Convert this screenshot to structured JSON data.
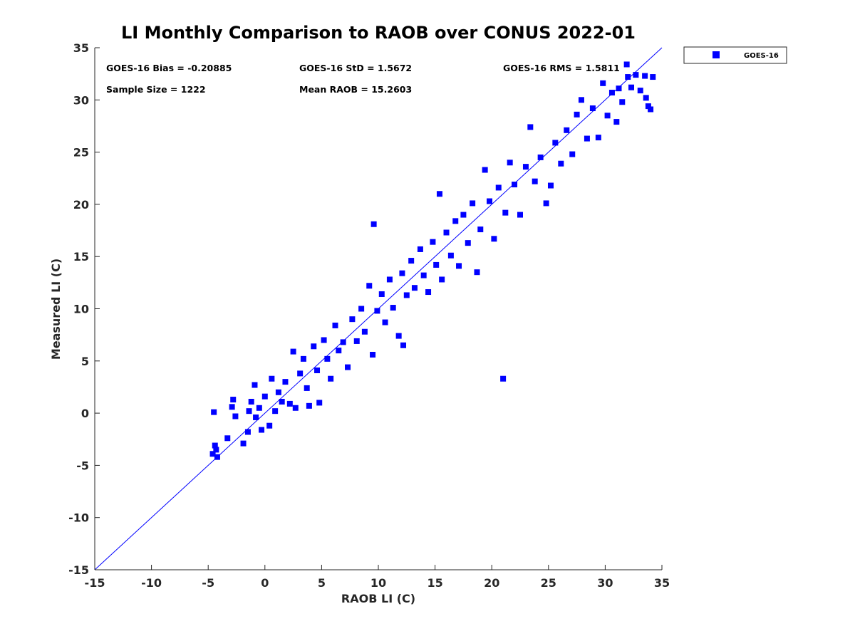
{
  "chart_data": {
    "type": "scatter",
    "title": "LI Monthly Comparison to RAOB over CONUS 2022-01",
    "xlabel": "RAOB LI (C)",
    "ylabel": "Measured LI (C)",
    "xlim": [
      -15,
      35
    ],
    "ylim": [
      -15,
      35
    ],
    "xticks": [
      -15,
      -10,
      -5,
      0,
      5,
      10,
      15,
      20,
      25,
      30,
      35
    ],
    "yticks": [
      -15,
      -10,
      -5,
      0,
      5,
      10,
      15,
      20,
      25,
      30,
      35
    ],
    "xtick_labels": [
      "-15",
      "-10",
      "-5",
      "0",
      "5",
      "10",
      "15",
      "20",
      "25",
      "30",
      "35"
    ],
    "ytick_labels": [
      "-15",
      "-10",
      "-5",
      "0",
      "5",
      "10",
      "15",
      "20",
      "25",
      "30",
      "35"
    ],
    "grid": false,
    "reference_line": {
      "type": "one-to-one",
      "from": [
        -15,
        -15
      ],
      "to": [
        35,
        35
      ],
      "color": "#0000ff"
    },
    "stats": {
      "bias": "GOES-16 Bias = -0.20885",
      "std": "GOES-16 StD = 1.5672",
      "rms": "GOES-16 RMS = 1.5811",
      "sample_size": "Sample Size = 1222",
      "mean_raob": "Mean RAOB = 15.2603"
    },
    "legend": {
      "placement": "outside-top-right",
      "entries": [
        "GOES-16"
      ]
    },
    "series": [
      {
        "name": "GOES-16",
        "color": "#0000ff",
        "marker": "square",
        "points": [
          [
            -4.6,
            -3.9
          ],
          [
            -4.3,
            -3.5
          ],
          [
            -4.4,
            -3.1
          ],
          [
            -4.2,
            -4.2
          ],
          [
            -4.5,
            0.1
          ],
          [
            -3.3,
            -2.4
          ],
          [
            -2.8,
            1.3
          ],
          [
            -2.9,
            0.6
          ],
          [
            -2.6,
            -0.3
          ],
          [
            -1.9,
            -2.9
          ],
          [
            -1.5,
            -1.8
          ],
          [
            -1.4,
            0.2
          ],
          [
            -1.2,
            1.1
          ],
          [
            -0.9,
            2.7
          ],
          [
            -0.8,
            -0.4
          ],
          [
            -0.5,
            0.5
          ],
          [
            -0.3,
            -1.6
          ],
          [
            0.0,
            1.6
          ],
          [
            0.4,
            -1.2
          ],
          [
            0.6,
            3.3
          ],
          [
            0.9,
            0.2
          ],
          [
            1.2,
            2.0
          ],
          [
            1.5,
            1.1
          ],
          [
            1.8,
            3.0
          ],
          [
            2.2,
            0.9
          ],
          [
            2.5,
            5.9
          ],
          [
            2.7,
            0.5
          ],
          [
            3.1,
            3.8
          ],
          [
            3.4,
            5.2
          ],
          [
            3.7,
            2.4
          ],
          [
            3.9,
            0.7
          ],
          [
            4.3,
            6.4
          ],
          [
            4.6,
            4.1
          ],
          [
            4.8,
            1.0
          ],
          [
            5.2,
            7.0
          ],
          [
            5.5,
            5.2
          ],
          [
            5.8,
            3.3
          ],
          [
            6.2,
            8.4
          ],
          [
            6.5,
            6.0
          ],
          [
            6.9,
            6.8
          ],
          [
            7.3,
            4.4
          ],
          [
            7.7,
            9.0
          ],
          [
            8.1,
            6.9
          ],
          [
            8.5,
            10.0
          ],
          [
            8.8,
            7.8
          ],
          [
            9.2,
            12.2
          ],
          [
            9.5,
            5.6
          ],
          [
            9.6,
            18.1
          ],
          [
            9.9,
            9.8
          ],
          [
            10.3,
            11.4
          ],
          [
            10.6,
            8.7
          ],
          [
            11.0,
            12.8
          ],
          [
            11.3,
            10.1
          ],
          [
            11.8,
            7.4
          ],
          [
            12.1,
            13.4
          ],
          [
            12.2,
            6.5
          ],
          [
            12.5,
            11.3
          ],
          [
            12.9,
            14.6
          ],
          [
            13.2,
            12.0
          ],
          [
            13.7,
            15.7
          ],
          [
            14.0,
            13.2
          ],
          [
            14.4,
            11.6
          ],
          [
            14.8,
            16.4
          ],
          [
            15.1,
            14.2
          ],
          [
            15.4,
            21.0
          ],
          [
            15.6,
            12.8
          ],
          [
            16.0,
            17.3
          ],
          [
            16.4,
            15.1
          ],
          [
            16.8,
            18.4
          ],
          [
            17.1,
            14.1
          ],
          [
            17.5,
            19.0
          ],
          [
            17.9,
            16.3
          ],
          [
            18.3,
            20.1
          ],
          [
            18.7,
            13.5
          ],
          [
            19.0,
            17.6
          ],
          [
            19.4,
            23.3
          ],
          [
            19.8,
            20.3
          ],
          [
            20.2,
            16.7
          ],
          [
            20.6,
            21.6
          ],
          [
            21.0,
            3.3
          ],
          [
            21.2,
            19.2
          ],
          [
            21.6,
            24.0
          ],
          [
            22.0,
            21.9
          ],
          [
            22.5,
            19.0
          ],
          [
            23.0,
            23.6
          ],
          [
            23.4,
            27.4
          ],
          [
            23.8,
            22.2
          ],
          [
            24.3,
            24.5
          ],
          [
            24.8,
            20.1
          ],
          [
            25.2,
            21.8
          ],
          [
            25.6,
            25.9
          ],
          [
            26.1,
            23.9
          ],
          [
            26.6,
            27.1
          ],
          [
            27.1,
            24.8
          ],
          [
            27.5,
            28.6
          ],
          [
            27.9,
            30.0
          ],
          [
            28.4,
            26.3
          ],
          [
            28.9,
            29.2
          ],
          [
            29.4,
            26.4
          ],
          [
            29.8,
            31.6
          ],
          [
            30.2,
            28.5
          ],
          [
            30.6,
            30.7
          ],
          [
            31.0,
            27.9
          ],
          [
            31.5,
            29.8
          ],
          [
            31.9,
            33.4
          ],
          [
            32.3,
            31.2
          ],
          [
            32.7,
            32.4
          ],
          [
            33.1,
            30.9
          ],
          [
            33.5,
            32.3
          ],
          [
            33.8,
            29.4
          ],
          [
            34.0,
            29.1
          ],
          [
            34.2,
            32.2
          ],
          [
            33.6,
            30.2
          ],
          [
            32.0,
            32.2
          ],
          [
            31.2,
            31.1
          ]
        ]
      }
    ]
  }
}
